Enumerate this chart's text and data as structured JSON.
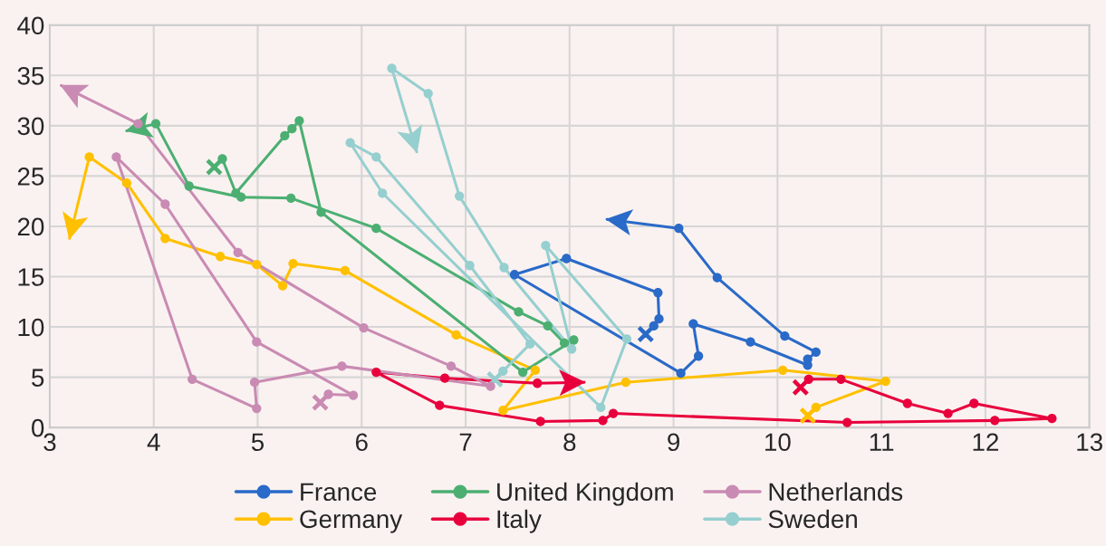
{
  "chart_data": {
    "type": "line",
    "marker": "circle",
    "grid": true,
    "legend": "bottom",
    "xlim": [
      3,
      13
    ],
    "xticks": [
      3,
      4,
      5,
      6,
      7,
      8,
      9,
      10,
      11,
      12,
      13
    ],
    "ylim": [
      0,
      40
    ],
    "yticks": [
      0,
      5,
      10,
      15,
      20,
      25,
      30,
      35,
      40
    ],
    "series": [
      {
        "name": "France",
        "color": "#2a6ac8",
        "x": [
          8.81,
          8.86,
          8.85,
          7.97,
          7.47,
          9.07,
          9.24,
          9.19,
          9.74,
          10.29,
          10.29,
          10.37,
          10.07,
          9.42,
          9.05,
          8.36
        ],
        "values": [
          10.1,
          10.8,
          13.4,
          16.8,
          15.2,
          5.4,
          7.1,
          10.3,
          8.5,
          6.2,
          6.8,
          7.5,
          9.1,
          14.9,
          19.8,
          20.7
        ]
      },
      {
        "name": "Germany",
        "color": "#ffc000",
        "x": [
          10.37,
          11.04,
          10.05,
          8.54,
          7.36,
          7.67,
          6.91,
          5.84,
          5.34,
          5.24,
          4.99,
          4.64,
          4.11,
          3.74,
          3.38,
          3.19
        ],
        "values": [
          2.0,
          4.6,
          5.7,
          4.5,
          1.7,
          5.7,
          9.2,
          15.6,
          16.3,
          14.1,
          16.2,
          17.0,
          18.8,
          24.3,
          26.9,
          18.8
        ]
      },
      {
        "name": "United Kingdom",
        "color": "#4caf72",
        "x": [
          4.66,
          4.79,
          5.26,
          5.33,
          5.4,
          5.61,
          7.55,
          8.04,
          7.95,
          7.79,
          7.51,
          6.14,
          5.32,
          4.84,
          4.34,
          4.02,
          3.74
        ],
        "values": [
          26.7,
          23.3,
          29.0,
          29.7,
          30.5,
          21.4,
          5.5,
          8.7,
          8.4,
          10.1,
          11.5,
          19.8,
          22.8,
          22.9,
          24.0,
          30.2,
          29.5
        ]
      },
      {
        "name": "Italy",
        "color": "#e8003d",
        "x": [
          10.3,
          10.61,
          11.25,
          11.64,
          11.89,
          12.64,
          12.09,
          10.67,
          8.42,
          8.32,
          7.72,
          6.75,
          6.14,
          6.8,
          7.69,
          8.14
        ],
        "values": [
          4.8,
          4.8,
          2.4,
          1.4,
          2.4,
          0.9,
          0.7,
          0.5,
          1.4,
          0.7,
          0.6,
          2.2,
          5.5,
          4.9,
          4.4,
          4.5
        ]
      },
      {
        "name": "Netherlands",
        "color": "#c98bb3",
        "x": [
          5.68,
          5.92,
          4.99,
          4.11,
          3.64,
          4.37,
          4.99,
          4.97,
          5.81,
          7.24,
          6.86,
          6.02,
          4.81,
          3.85,
          3.11
        ],
        "values": [
          3.3,
          3.2,
          8.5,
          22.2,
          26.9,
          4.8,
          1.9,
          4.5,
          6.1,
          4.1,
          6.1,
          9.9,
          17.4,
          30.2,
          34.0
        ]
      },
      {
        "name": "Sweden",
        "color": "#96cfcf",
        "x": [
          7.36,
          7.62,
          7.04,
          6.14,
          5.89,
          6.2,
          8.3,
          8.55,
          7.77,
          8.02,
          7.37,
          6.94,
          6.64,
          6.29,
          6.53
        ],
        "values": [
          5.6,
          8.3,
          16.1,
          26.9,
          28.3,
          23.3,
          2.0,
          8.8,
          18.1,
          7.8,
          15.9,
          23.0,
          33.2,
          35.7,
          27.4
        ]
      }
    ]
  }
}
